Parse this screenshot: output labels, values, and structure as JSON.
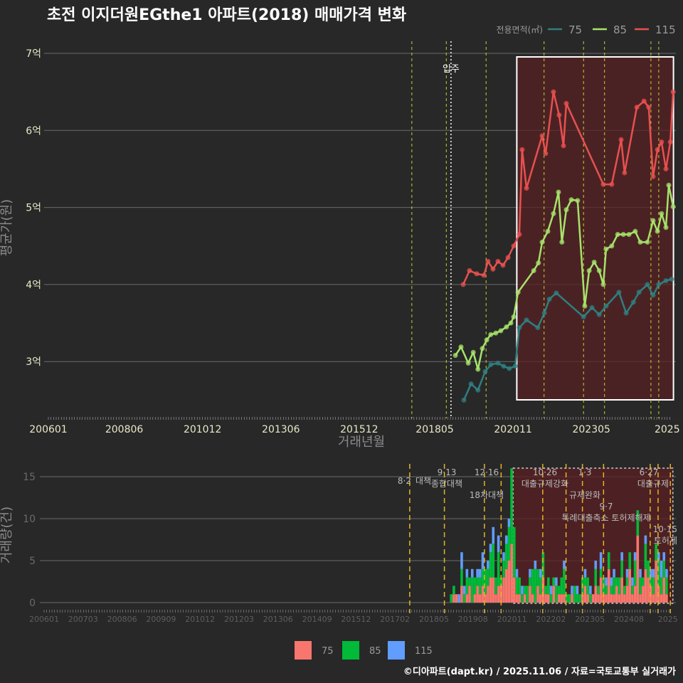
{
  "title": "초전 이지더원EGthe1 아파트(2018) 매매가격 변화",
  "footer": "©디아파트(dapt.kr) / 2025.11.06 / 자료=국토교통부 실거래가",
  "colors": {
    "s75": "#2f7f80",
    "s85": "#a6e36b",
    "s115": "#e8504f",
    "bar75": "#f8766d",
    "bar85": "#00ba38",
    "bar115": "#619cff",
    "policy": "#e6b422",
    "highlight": "#5a1f22"
  },
  "chart_data": [
    {
      "type": "line",
      "title": "초전 이지더원EGthe1 아파트(2018) 매매가격 변화",
      "xlabel": "거래년월",
      "ylabel": "평균가(원)",
      "ylim": [
        2.35,
        7.1
      ],
      "xlim": [
        2006.0,
        2025.95
      ],
      "yticks": [
        {
          "v": 3,
          "label": "3억"
        },
        {
          "v": 4,
          "label": "4억"
        },
        {
          "v": 5,
          "label": "5억"
        },
        {
          "v": 6,
          "label": "6억"
        },
        {
          "v": 7,
          "label": "7억"
        }
      ],
      "xticks": [
        {
          "v": 2006.0,
          "label": "200601"
        },
        {
          "v": 2008.42,
          "label": "200806"
        },
        {
          "v": 2010.92,
          "label": "201012"
        },
        {
          "v": 2013.42,
          "label": "201306"
        },
        {
          "v": 2015.92,
          "label": "201512"
        },
        {
          "v": 2018.33,
          "label": "201805"
        },
        {
          "v": 2020.83,
          "label": "202011"
        },
        {
          "v": 2023.33,
          "label": "202305"
        },
        {
          "v": 2025.75,
          "label": "2025"
        }
      ],
      "legend": {
        "title": "전용면적(㎡)",
        "position": "top-right"
      },
      "series": [
        {
          "name": "75",
          "color_key": "s75",
          "points": [
            [
              2019.26,
              2.5
            ],
            [
              2019.49,
              2.71
            ],
            [
              2019.71,
              2.63
            ],
            [
              2019.94,
              2.87
            ],
            [
              2020.12,
              2.96
            ],
            [
              2020.35,
              2.98
            ],
            [
              2020.53,
              2.94
            ],
            [
              2020.71,
              2.91
            ],
            [
              2020.9,
              2.94
            ],
            [
              2021.03,
              3.44
            ],
            [
              2021.26,
              3.54
            ],
            [
              2021.62,
              3.44
            ],
            [
              2021.83,
              3.63
            ],
            [
              2021.99,
              3.81
            ],
            [
              2022.21,
              3.89
            ],
            [
              2023.08,
              3.58
            ],
            [
              2023.35,
              3.7
            ],
            [
              2023.58,
              3.61
            ],
            [
              2023.8,
              3.72
            ],
            [
              2024.21,
              3.9
            ],
            [
              2024.44,
              3.63
            ],
            [
              2024.67,
              3.77
            ],
            [
              2024.85,
              3.9
            ],
            [
              2025.12,
              4.0
            ],
            [
              2025.3,
              3.86
            ],
            [
              2025.48,
              4.0
            ],
            [
              2025.71,
              4.05
            ],
            [
              2025.89,
              4.07
            ]
          ]
        },
        {
          "name": "85",
          "color_key": "s85",
          "points": [
            [
              2018.99,
              3.08
            ],
            [
              2019.17,
              3.19
            ],
            [
              2019.4,
              2.98
            ],
            [
              2019.56,
              3.12
            ],
            [
              2019.71,
              2.9
            ],
            [
              2019.85,
              3.17
            ],
            [
              2019.99,
              3.28
            ],
            [
              2020.12,
              3.35
            ],
            [
              2020.28,
              3.37
            ],
            [
              2020.44,
              3.4
            ],
            [
              2020.62,
              3.45
            ],
            [
              2020.76,
              3.5
            ],
            [
              2020.85,
              3.58
            ],
            [
              2020.99,
              3.9
            ],
            [
              2021.49,
              4.18
            ],
            [
              2021.64,
              4.28
            ],
            [
              2021.76,
              4.55
            ],
            [
              2021.94,
              4.69
            ],
            [
              2022.12,
              4.92
            ],
            [
              2022.28,
              5.2
            ],
            [
              2022.39,
              4.55
            ],
            [
              2022.53,
              4.97
            ],
            [
              2022.69,
              5.1
            ],
            [
              2022.89,
              5.09
            ],
            [
              2023.12,
              3.72
            ],
            [
              2023.26,
              4.18
            ],
            [
              2023.42,
              4.29
            ],
            [
              2023.58,
              4.18
            ],
            [
              2023.71,
              4.0
            ],
            [
              2023.8,
              4.46
            ],
            [
              2023.98,
              4.5
            ],
            [
              2024.17,
              4.65
            ],
            [
              2024.35,
              4.65
            ],
            [
              2024.53,
              4.65
            ],
            [
              2024.73,
              4.69
            ],
            [
              2024.89,
              4.55
            ],
            [
              2025.12,
              4.55
            ],
            [
              2025.3,
              4.83
            ],
            [
              2025.44,
              4.69
            ],
            [
              2025.57,
              4.92
            ],
            [
              2025.71,
              4.74
            ],
            [
              2025.8,
              5.29
            ],
            [
              2025.94,
              5.01
            ]
          ]
        },
        {
          "name": "115",
          "color_key": "s115",
          "points": [
            [
              2019.24,
              4.0
            ],
            [
              2019.44,
              4.18
            ],
            [
              2019.67,
              4.14
            ],
            [
              2019.9,
              4.12
            ],
            [
              2020.03,
              4.3
            ],
            [
              2020.19,
              4.2
            ],
            [
              2020.35,
              4.3
            ],
            [
              2020.51,
              4.25
            ],
            [
              2020.67,
              4.35
            ],
            [
              2020.85,
              4.5
            ],
            [
              2021.03,
              4.65
            ],
            [
              2021.12,
              5.75
            ],
            [
              2021.26,
              5.25
            ],
            [
              2021.76,
              5.93
            ],
            [
              2021.87,
              5.7
            ],
            [
              2022.12,
              6.5
            ],
            [
              2022.3,
              6.2
            ],
            [
              2022.44,
              5.8
            ],
            [
              2022.53,
              6.35
            ],
            [
              2023.71,
              5.3
            ],
            [
              2023.98,
              5.3
            ],
            [
              2024.28,
              5.88
            ],
            [
              2024.39,
              5.45
            ],
            [
              2024.78,
              6.3
            ],
            [
              2025.01,
              6.38
            ],
            [
              2025.16,
              6.3
            ],
            [
              2025.3,
              5.4
            ],
            [
              2025.44,
              5.75
            ],
            [
              2025.57,
              5.85
            ],
            [
              2025.71,
              5.5
            ],
            [
              2025.85,
              5.85
            ],
            [
              2025.94,
              6.5
            ]
          ]
        }
      ],
      "annotations": [
        {
          "x": 2018.85,
          "label": "입주"
        }
      ],
      "highlight_range": [
        2020.95,
        2025.95
      ]
    },
    {
      "type": "bar",
      "stacked": true,
      "ylabel": "거래량(건)",
      "ylim": [
        0,
        16.5
      ],
      "yticks": [
        0,
        5,
        10,
        15
      ],
      "xticks": [
        "200601",
        "200703",
        "200806",
        "200909",
        "201012",
        "201203",
        "201306",
        "201409",
        "201512",
        "201702",
        "201805",
        "201908",
        "202011",
        "202202",
        "202305",
        "202408",
        "2025"
      ],
      "start_month": "2018-12",
      "series": [
        {
          "name": "75",
          "color_key": "bar75",
          "values": [
            0,
            1,
            1,
            0,
            2,
            0,
            1,
            2,
            0,
            1,
            2,
            1,
            2,
            1,
            2,
            3,
            3,
            1,
            2,
            2,
            3,
            4,
            5,
            7,
            3,
            1,
            1,
            0,
            1,
            0,
            2,
            1,
            0,
            2,
            1,
            3,
            1,
            1,
            0,
            2,
            0,
            1,
            1,
            1,
            0,
            0,
            1,
            0,
            0,
            0,
            1,
            2,
            1,
            0,
            1,
            2,
            1,
            3,
            1,
            1,
            4,
            1,
            1,
            2,
            1,
            3,
            1,
            2,
            4,
            1,
            2,
            8,
            1,
            2,
            4,
            3,
            2,
            1,
            5,
            2,
            1,
            3,
            1
          ]
        },
        {
          "name": "85",
          "color_key": "bar85",
          "values": [
            1,
            1,
            0,
            0,
            2,
            1,
            2,
            1,
            3,
            2,
            1,
            2,
            2,
            3,
            2,
            3,
            4,
            2,
            4,
            1,
            2,
            3,
            4,
            9,
            6,
            2,
            2,
            1,
            1,
            2,
            1,
            3,
            4,
            2,
            2,
            3,
            1,
            2,
            1,
            1,
            2,
            1,
            2,
            3,
            1,
            1,
            0,
            2,
            1,
            1,
            2,
            1,
            2,
            1,
            0,
            2,
            1,
            1,
            2,
            1,
            2,
            1,
            2,
            1,
            2,
            2,
            1,
            1,
            2,
            1,
            3,
            3,
            2,
            1,
            3,
            2,
            1,
            2,
            2,
            3,
            2,
            2,
            2
          ]
        },
        {
          "name": "115",
          "color_key": "bar115",
          "values": [
            0,
            0,
            0,
            1,
            2,
            1,
            1,
            0,
            1,
            0,
            1,
            1,
            2,
            0,
            1,
            1,
            2,
            0,
            2,
            0,
            1,
            1,
            1,
            0,
            0,
            1,
            0,
            1,
            0,
            0,
            1,
            0,
            1,
            0,
            1,
            0,
            0,
            0,
            1,
            0,
            1,
            0,
            0,
            1,
            0,
            0,
            1,
            0,
            1,
            0,
            0,
            1,
            0,
            1,
            0,
            1,
            0,
            2,
            0,
            1,
            0,
            1,
            1,
            0,
            0,
            1,
            0,
            1,
            0,
            1,
            1,
            0,
            1,
            0,
            1,
            0,
            1,
            1,
            0,
            1,
            2,
            1,
            1
          ]
        }
      ],
      "legend": {
        "position": "bottom",
        "entries": [
          "75",
          "85",
          "115"
        ]
      },
      "policies": [
        {
          "x": 2017.6,
          "date": "8·2",
          "label": "대책",
          "inline": true
        },
        {
          "x": 2018.7,
          "date": "9·13",
          "label": "종합대책"
        },
        {
          "x": 2019.97,
          "date": "12·16",
          "label": "18차대책"
        },
        {
          "x": 2020.5,
          "date": "",
          "label": ""
        },
        {
          "x": 2021.82,
          "date": "10·26",
          "label": "대출규제강화"
        },
        {
          "x": 2022.56,
          "date": "",
          "label": ""
        },
        {
          "x": 2023.08,
          "date": "1·3",
          "label": "규제완화"
        },
        {
          "x": 2023.75,
          "date": "9·7",
          "label": "특례대출축소 토허제해제"
        },
        {
          "x": 2025.23,
          "date": "6·27",
          "label": "대출규제"
        },
        {
          "x": 2025.48,
          "date": "10·15",
          "label": "토허제"
        },
        {
          "x": 2025.87,
          "date": "",
          "label": ""
        }
      ],
      "highlight_range": [
        2020.88,
        2025.95
      ]
    }
  ]
}
